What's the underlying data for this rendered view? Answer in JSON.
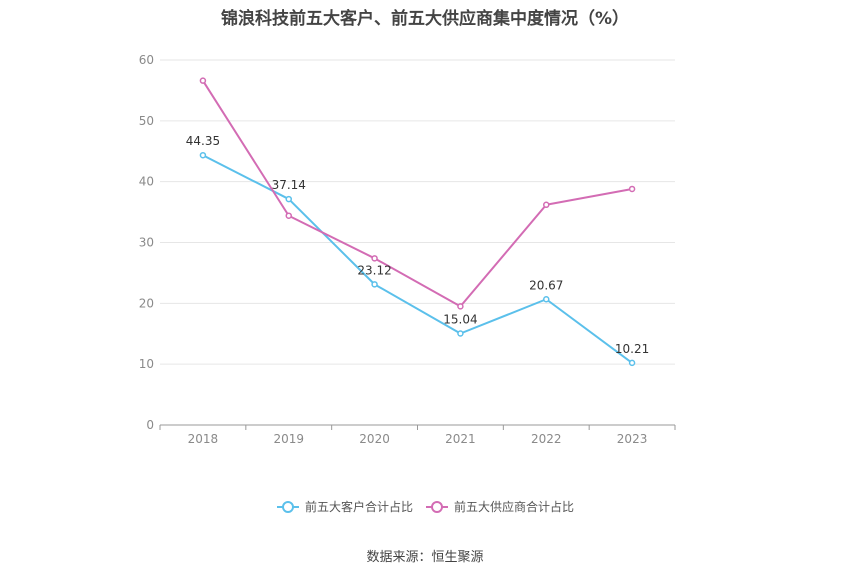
{
  "chart_data": {
    "type": "line",
    "title": "锦浪科技前五大客户、前五大供应商集中度情况（%）",
    "categories": [
      "2018",
      "2019",
      "2020",
      "2021",
      "2022",
      "2023"
    ],
    "ylim": [
      0,
      60
    ],
    "yticks": [
      0,
      10,
      20,
      30,
      40,
      50,
      60
    ],
    "grid": true,
    "legend_position": "bottom",
    "series": [
      {
        "name": "前五大客户合计占比",
        "color": "#5bc0eb",
        "values": [
          44.35,
          37.14,
          23.12,
          15.04,
          20.67,
          10.21
        ],
        "labels": [
          "44.35",
          "37.14",
          "23.12",
          "15.04",
          "20.67",
          "10.21"
        ]
      },
      {
        "name": "前五大供应商合计占比",
        "color": "#d36cb4",
        "values": [
          56.6,
          34.4,
          27.4,
          19.5,
          36.2,
          38.8
        ],
        "labels": []
      }
    ]
  },
  "source": "数据来源：恒生聚源"
}
